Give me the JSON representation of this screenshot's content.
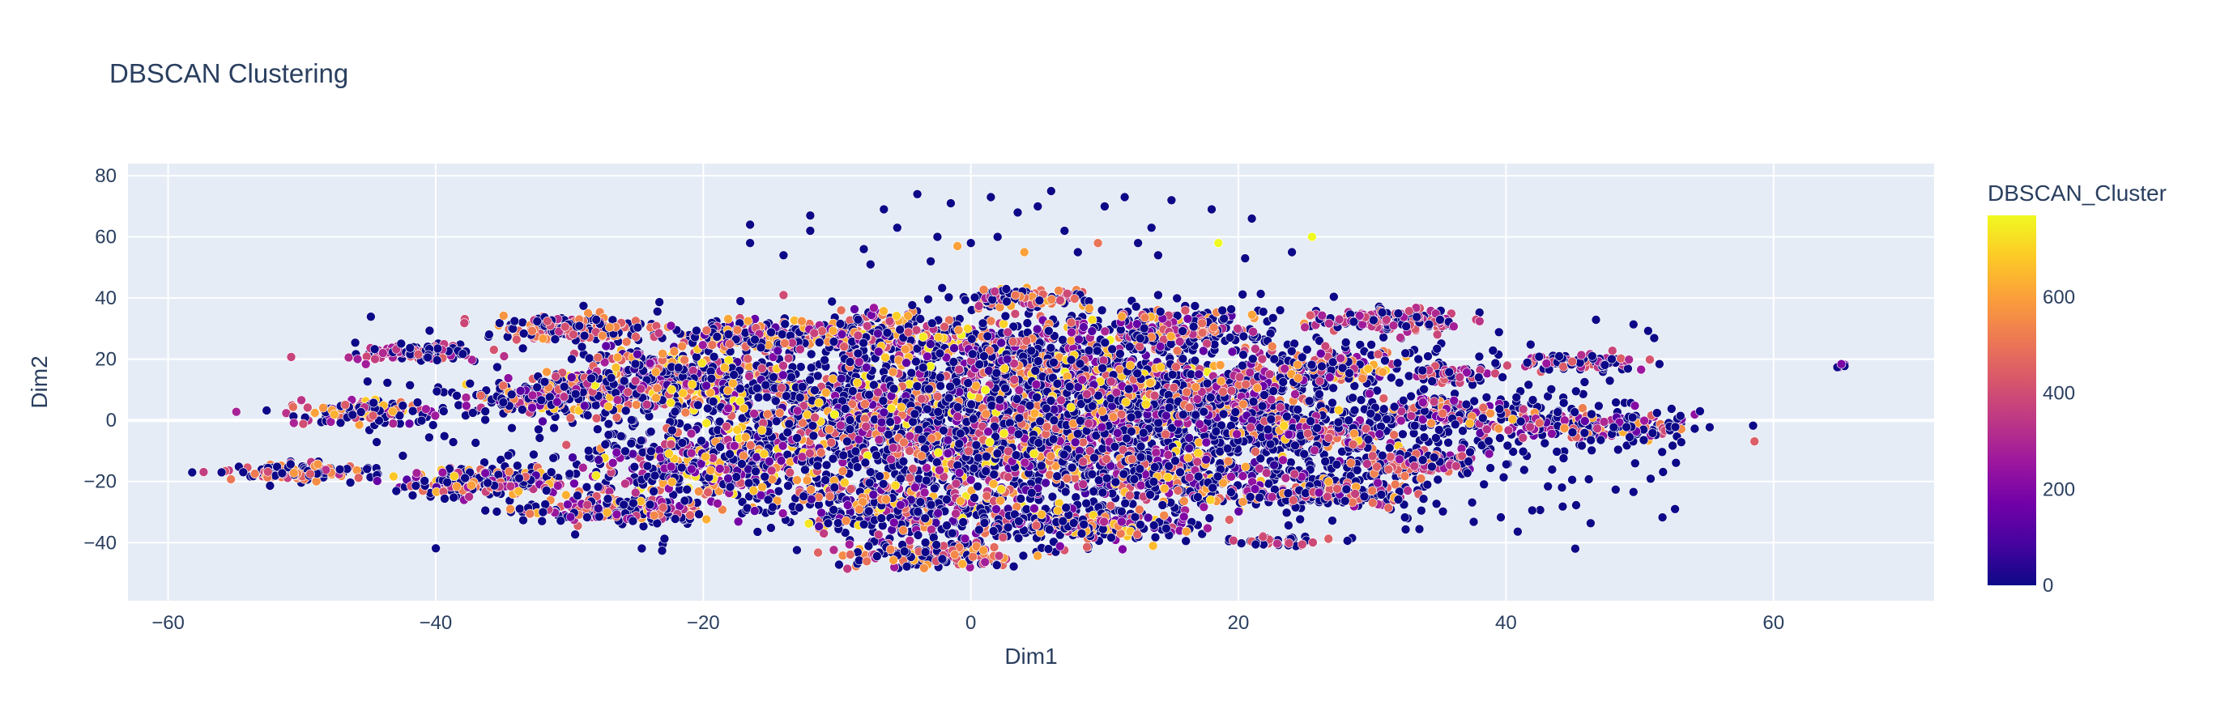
{
  "chart_data": {
    "type": "scatter",
    "title": "DBSCAN Clustering",
    "xlabel": "Dim1",
    "ylabel": "Dim2",
    "xlim": [
      -63,
      72
    ],
    "ylim": [
      -59,
      84
    ],
    "x_ticks": [
      -60,
      -40,
      -20,
      0,
      20,
      40,
      60
    ],
    "y_ticks": [
      -40,
      -20,
      0,
      20,
      40,
      60,
      80
    ],
    "x_tick_labels": [
      "−60",
      "−40",
      "−20",
      "0",
      "20",
      "40",
      "60"
    ],
    "y_tick_labels": [
      "−40",
      "−20",
      "0",
      "20",
      "40",
      "60",
      "80"
    ],
    "grid": true,
    "plot_background": "#e5ecf6",
    "gridline_color": "#ffffff",
    "marker_outline_color": "#ffffff",
    "colorscale": [
      "#0d0887",
      "#46039f",
      "#7201a8",
      "#9c179e",
      "#bd3786",
      "#d8576b",
      "#ed7953",
      "#fb9f3a",
      "#fdca26",
      "#f0f921"
    ],
    "colorbar": {
      "title": "DBSCAN_Cluster",
      "range": [
        0,
        770
      ],
      "ticks": [
        0,
        200,
        400,
        600
      ],
      "tick_labels": [
        "0",
        "200",
        "400",
        "600"
      ]
    },
    "clusters": [
      {
        "cx": -50.5,
        "cy": -17.0,
        "sx": 2.6,
        "sy": 1.5,
        "n": 140,
        "cmin": 300,
        "cmax": 600
      },
      {
        "cx": -45.5,
        "cy": 3.0,
        "sx": 2.8,
        "sy": 1.8,
        "n": 140,
        "cmin": 150,
        "cmax": 700
      },
      {
        "cx": -41.5,
        "cy": 22.0,
        "sx": 2.4,
        "sy": 1.3,
        "n": 110,
        "cmin": 250,
        "cmax": 450
      },
      {
        "cx": -36.0,
        "cy": -20.0,
        "sx": 3.2,
        "sy": 2.2,
        "n": 240,
        "cmin": 100,
        "cmax": 700
      },
      {
        "cx": -31.0,
        "cy": 8.0,
        "sx": 3.2,
        "sy": 3.0,
        "n": 230,
        "cmin": 100,
        "cmax": 700
      },
      {
        "cx": -30.0,
        "cy": 30.0,
        "sx": 2.8,
        "sy": 2.2,
        "n": 160,
        "cmin": 300,
        "cmax": 600
      },
      {
        "cx": -26.0,
        "cy": -29.0,
        "sx": 3.5,
        "sy": 2.5,
        "n": 200,
        "cmin": 150,
        "cmax": 650
      },
      {
        "cx": -22.0,
        "cy": 14.0,
        "sx": 3.8,
        "sy": 5.0,
        "n": 440,
        "cmin": 50,
        "cmax": 750
      },
      {
        "cx": -19.0,
        "cy": -14.0,
        "sx": 4.5,
        "sy": 5.5,
        "n": 360,
        "cmin": 50,
        "cmax": 750
      },
      {
        "cx": -16.0,
        "cy": 28.0,
        "sx": 3.0,
        "sy": 2.4,
        "n": 200,
        "cmin": 100,
        "cmax": 650
      },
      {
        "cx": -8.0,
        "cy": 4.0,
        "sx": 5.5,
        "sy": 8.0,
        "n": 620,
        "cmin": 50,
        "cmax": 770
      },
      {
        "cx": -6.0,
        "cy": 28.0,
        "sx": 3.5,
        "sy": 3.5,
        "n": 240,
        "cmin": 100,
        "cmax": 700
      },
      {
        "cx": -5.0,
        "cy": -28.0,
        "sx": 4.5,
        "sy": 5.0,
        "n": 340,
        "cmin": 50,
        "cmax": 750
      },
      {
        "cx": -3.0,
        "cy": -44.0,
        "sx": 3.2,
        "sy": 2.2,
        "n": 170,
        "cmin": 250,
        "cmax": 650
      },
      {
        "cx": 4.0,
        "cy": 20.0,
        "sx": 4.0,
        "sy": 6.0,
        "n": 420,
        "cmin": 50,
        "cmax": 770
      },
      {
        "cx": 4.0,
        "cy": 40.0,
        "sx": 2.5,
        "sy": 1.5,
        "n": 110,
        "cmin": 200,
        "cmax": 650
      },
      {
        "cx": 3.0,
        "cy": -8.0,
        "sx": 5.0,
        "sy": 7.0,
        "n": 560,
        "cmin": 50,
        "cmax": 770
      },
      {
        "cx": 8.0,
        "cy": -34.0,
        "sx": 4.0,
        "sy": 3.0,
        "n": 240,
        "cmin": 100,
        "cmax": 700
      },
      {
        "cx": 12.0,
        "cy": 6.0,
        "sx": 4.5,
        "sy": 6.0,
        "n": 430,
        "cmin": 50,
        "cmax": 770
      },
      {
        "cx": 15.0,
        "cy": 30.0,
        "sx": 3.0,
        "sy": 3.5,
        "n": 200,
        "cmin": 100,
        "cmax": 650
      },
      {
        "cx": 15.0,
        "cy": -18.0,
        "sx": 3.5,
        "sy": 4.0,
        "n": 260,
        "cmin": 50,
        "cmax": 700
      },
      {
        "cx": 20.5,
        "cy": 8.0,
        "sx": 2.5,
        "sy": 5.0,
        "n": 200,
        "cmin": 50,
        "cmax": 650
      },
      {
        "cx": 22.5,
        "cy": -40.0,
        "sx": 1.6,
        "sy": 1.0,
        "n": 40,
        "cmin": 300,
        "cmax": 450
      },
      {
        "cx": 25.5,
        "cy": -5.0,
        "sx": 3.0,
        "sy": 3.0,
        "n": 200,
        "cmin": 100,
        "cmax": 700
      },
      {
        "cx": 27.0,
        "cy": 18.0,
        "sx": 3.0,
        "sy": 3.0,
        "n": 160,
        "cmin": 150,
        "cmax": 700
      },
      {
        "cx": 27.0,
        "cy": -24.0,
        "sx": 3.5,
        "sy": 2.2,
        "n": 200,
        "cmin": 100,
        "cmax": 700
      },
      {
        "cx": 31.0,
        "cy": 33.0,
        "sx": 2.8,
        "sy": 1.8,
        "n": 150,
        "cmin": 250,
        "cmax": 450
      },
      {
        "cx": 34.0,
        "cy": -14.0,
        "sx": 2.5,
        "sy": 2.0,
        "n": 140,
        "cmin": 150,
        "cmax": 550
      },
      {
        "cx": 35.0,
        "cy": 2.0,
        "sx": 2.5,
        "sy": 2.5,
        "n": 120,
        "cmin": 150,
        "cmax": 600
      },
      {
        "cx": 36.0,
        "cy": 15.0,
        "sx": 1.5,
        "sy": 1.2,
        "n": 50,
        "cmin": 200,
        "cmax": 450
      },
      {
        "cx": 45.5,
        "cy": 19.0,
        "sx": 2.2,
        "sy": 1.2,
        "n": 90,
        "cmin": 250,
        "cmax": 450
      },
      {
        "cx": 46.5,
        "cy": -2.0,
        "sx": 4.0,
        "sy": 2.5,
        "n": 210,
        "cmin": 100,
        "cmax": 650
      },
      {
        "cx": 65.0,
        "cy": 18.0,
        "sx": 0.4,
        "sy": 0.4,
        "n": 5,
        "cmin": 150,
        "cmax": 400
      }
    ],
    "noise_points": [
      {
        "x": -16.5,
        "y": 64,
        "c": 0
      },
      {
        "x": -16.5,
        "y": 58,
        "c": 0
      },
      {
        "x": -14,
        "y": 54,
        "c": 0
      },
      {
        "x": -12,
        "y": 67,
        "c": 0
      },
      {
        "x": -12,
        "y": 62,
        "c": 0
      },
      {
        "x": -6.5,
        "y": 69,
        "c": 0
      },
      {
        "x": -5.5,
        "y": 63,
        "c": 0
      },
      {
        "x": -4,
        "y": 74,
        "c": 0
      },
      {
        "x": -2.5,
        "y": 60,
        "c": 0
      },
      {
        "x": -1.5,
        "y": 71,
        "c": 0
      },
      {
        "x": -3,
        "y": 52,
        "c": 0
      },
      {
        "x": 0,
        "y": 58,
        "c": 0
      },
      {
        "x": 1.5,
        "y": 73,
        "c": 0
      },
      {
        "x": 2,
        "y": 60,
        "c": 0
      },
      {
        "x": 3.5,
        "y": 68,
        "c": 0
      },
      {
        "x": 4,
        "y": 55,
        "c": 600
      },
      {
        "x": 5,
        "y": 70,
        "c": 0
      },
      {
        "x": 6,
        "y": 75,
        "c": 0
      },
      {
        "x": 7,
        "y": 62,
        "c": 0
      },
      {
        "x": 8,
        "y": 55,
        "c": 0
      },
      {
        "x": 9.5,
        "y": 58,
        "c": 500
      },
      {
        "x": 10,
        "y": 70,
        "c": 0
      },
      {
        "x": 11.5,
        "y": 73,
        "c": 0
      },
      {
        "x": 12.5,
        "y": 58,
        "c": 0
      },
      {
        "x": 13.5,
        "y": 63,
        "c": 0
      },
      {
        "x": 14,
        "y": 54,
        "c": 0
      },
      {
        "x": 15,
        "y": 72,
        "c": 0
      },
      {
        "x": 18,
        "y": 69,
        "c": 0
      },
      {
        "x": 18.5,
        "y": 58,
        "c": 770
      },
      {
        "x": 21,
        "y": 66,
        "c": 0
      },
      {
        "x": 20.5,
        "y": 53,
        "c": 0
      },
      {
        "x": 24,
        "y": 55,
        "c": 0
      },
      {
        "x": 25.5,
        "y": 60,
        "c": 770
      },
      {
        "x": -1,
        "y": 57,
        "c": 600
      },
      {
        "x": -8,
        "y": 56,
        "c": 0
      },
      {
        "x": -7.5,
        "y": 51,
        "c": 0
      },
      {
        "x": 14,
        "y": 41,
        "c": 0
      },
      {
        "x": -14,
        "y": 41,
        "c": 400
      },
      {
        "x": -56,
        "y": -17,
        "c": 0
      },
      {
        "x": 54.5,
        "y": 3,
        "c": 0
      }
    ],
    "scatter_noise": {
      "n": 2000,
      "xmin": -38,
      "xmax": 52,
      "ymin": -44,
      "ymax": 42
    }
  }
}
